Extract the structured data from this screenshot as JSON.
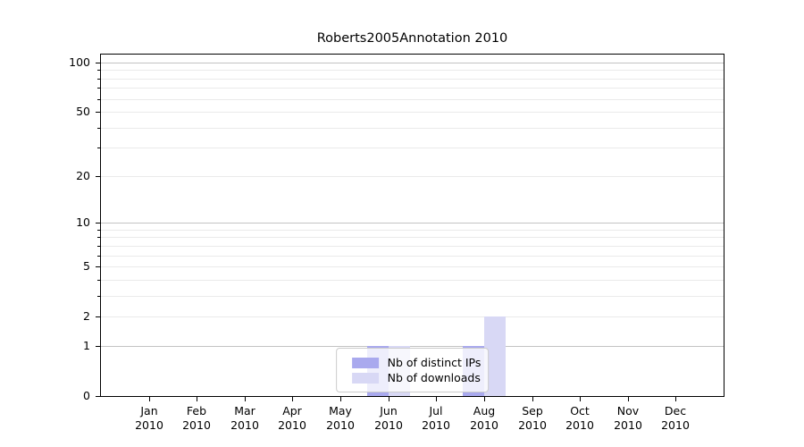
{
  "title": "Roberts2005Annotation 2010",
  "colors": {
    "series_distinct_ips": "#a9a9ee",
    "series_downloads": "#d8d8f5",
    "grid_major": "#c3c3c3",
    "grid_minor": "#eaeaea",
    "axis": "#000000",
    "legend_border": "#cccccc",
    "legend_background": "rgba(255,255,255,0.8)"
  },
  "chart_data": {
    "type": "bar",
    "title": "Roberts2005Annotation 2010",
    "categories": [
      "Jan 2010",
      "Feb 2010",
      "Mar 2010",
      "Apr 2010",
      "May 2010",
      "Jun 2010",
      "Jul 2010",
      "Aug 2010",
      "Sep 2010",
      "Oct 2010",
      "Nov 2010",
      "Dec 2010"
    ],
    "x_tick_month_labels": [
      "Jan",
      "Feb",
      "Mar",
      "Apr",
      "May",
      "Jun",
      "Jul",
      "Aug",
      "Sep",
      "Oct",
      "Nov",
      "Dec"
    ],
    "x_tick_year_label": "2010",
    "series": [
      {
        "name": "Nb of distinct IPs",
        "color": "#a9a9ee",
        "values": [
          0,
          0,
          0,
          0,
          0,
          1,
          0,
          1,
          0,
          0,
          0,
          0
        ]
      },
      {
        "name": "Nb of downloads",
        "color": "#d8d8f5",
        "values": [
          0,
          0,
          0,
          0,
          0,
          1,
          0,
          2,
          0,
          0,
          0,
          0
        ]
      }
    ],
    "y_axis": {
      "scale": "log10(value+1)",
      "tick_values": [
        0,
        1,
        2,
        5,
        10,
        20,
        50,
        100
      ],
      "tick_labels": [
        "0",
        "1",
        "2",
        "5",
        "10",
        "20",
        "50",
        "100"
      ],
      "decade_gridlines": [
        1,
        10,
        100
      ],
      "minor_gridlines": [
        2,
        3,
        4,
        5,
        6,
        7,
        8,
        9,
        20,
        30,
        40,
        50,
        60,
        70,
        80,
        90
      ],
      "ylim": [
        0,
        112
      ]
    },
    "xlabel": "",
    "ylabel": "",
    "grid": true,
    "legend": {
      "position": "lower center",
      "entries": [
        "Nb of distinct IPs",
        "Nb of downloads"
      ]
    }
  }
}
